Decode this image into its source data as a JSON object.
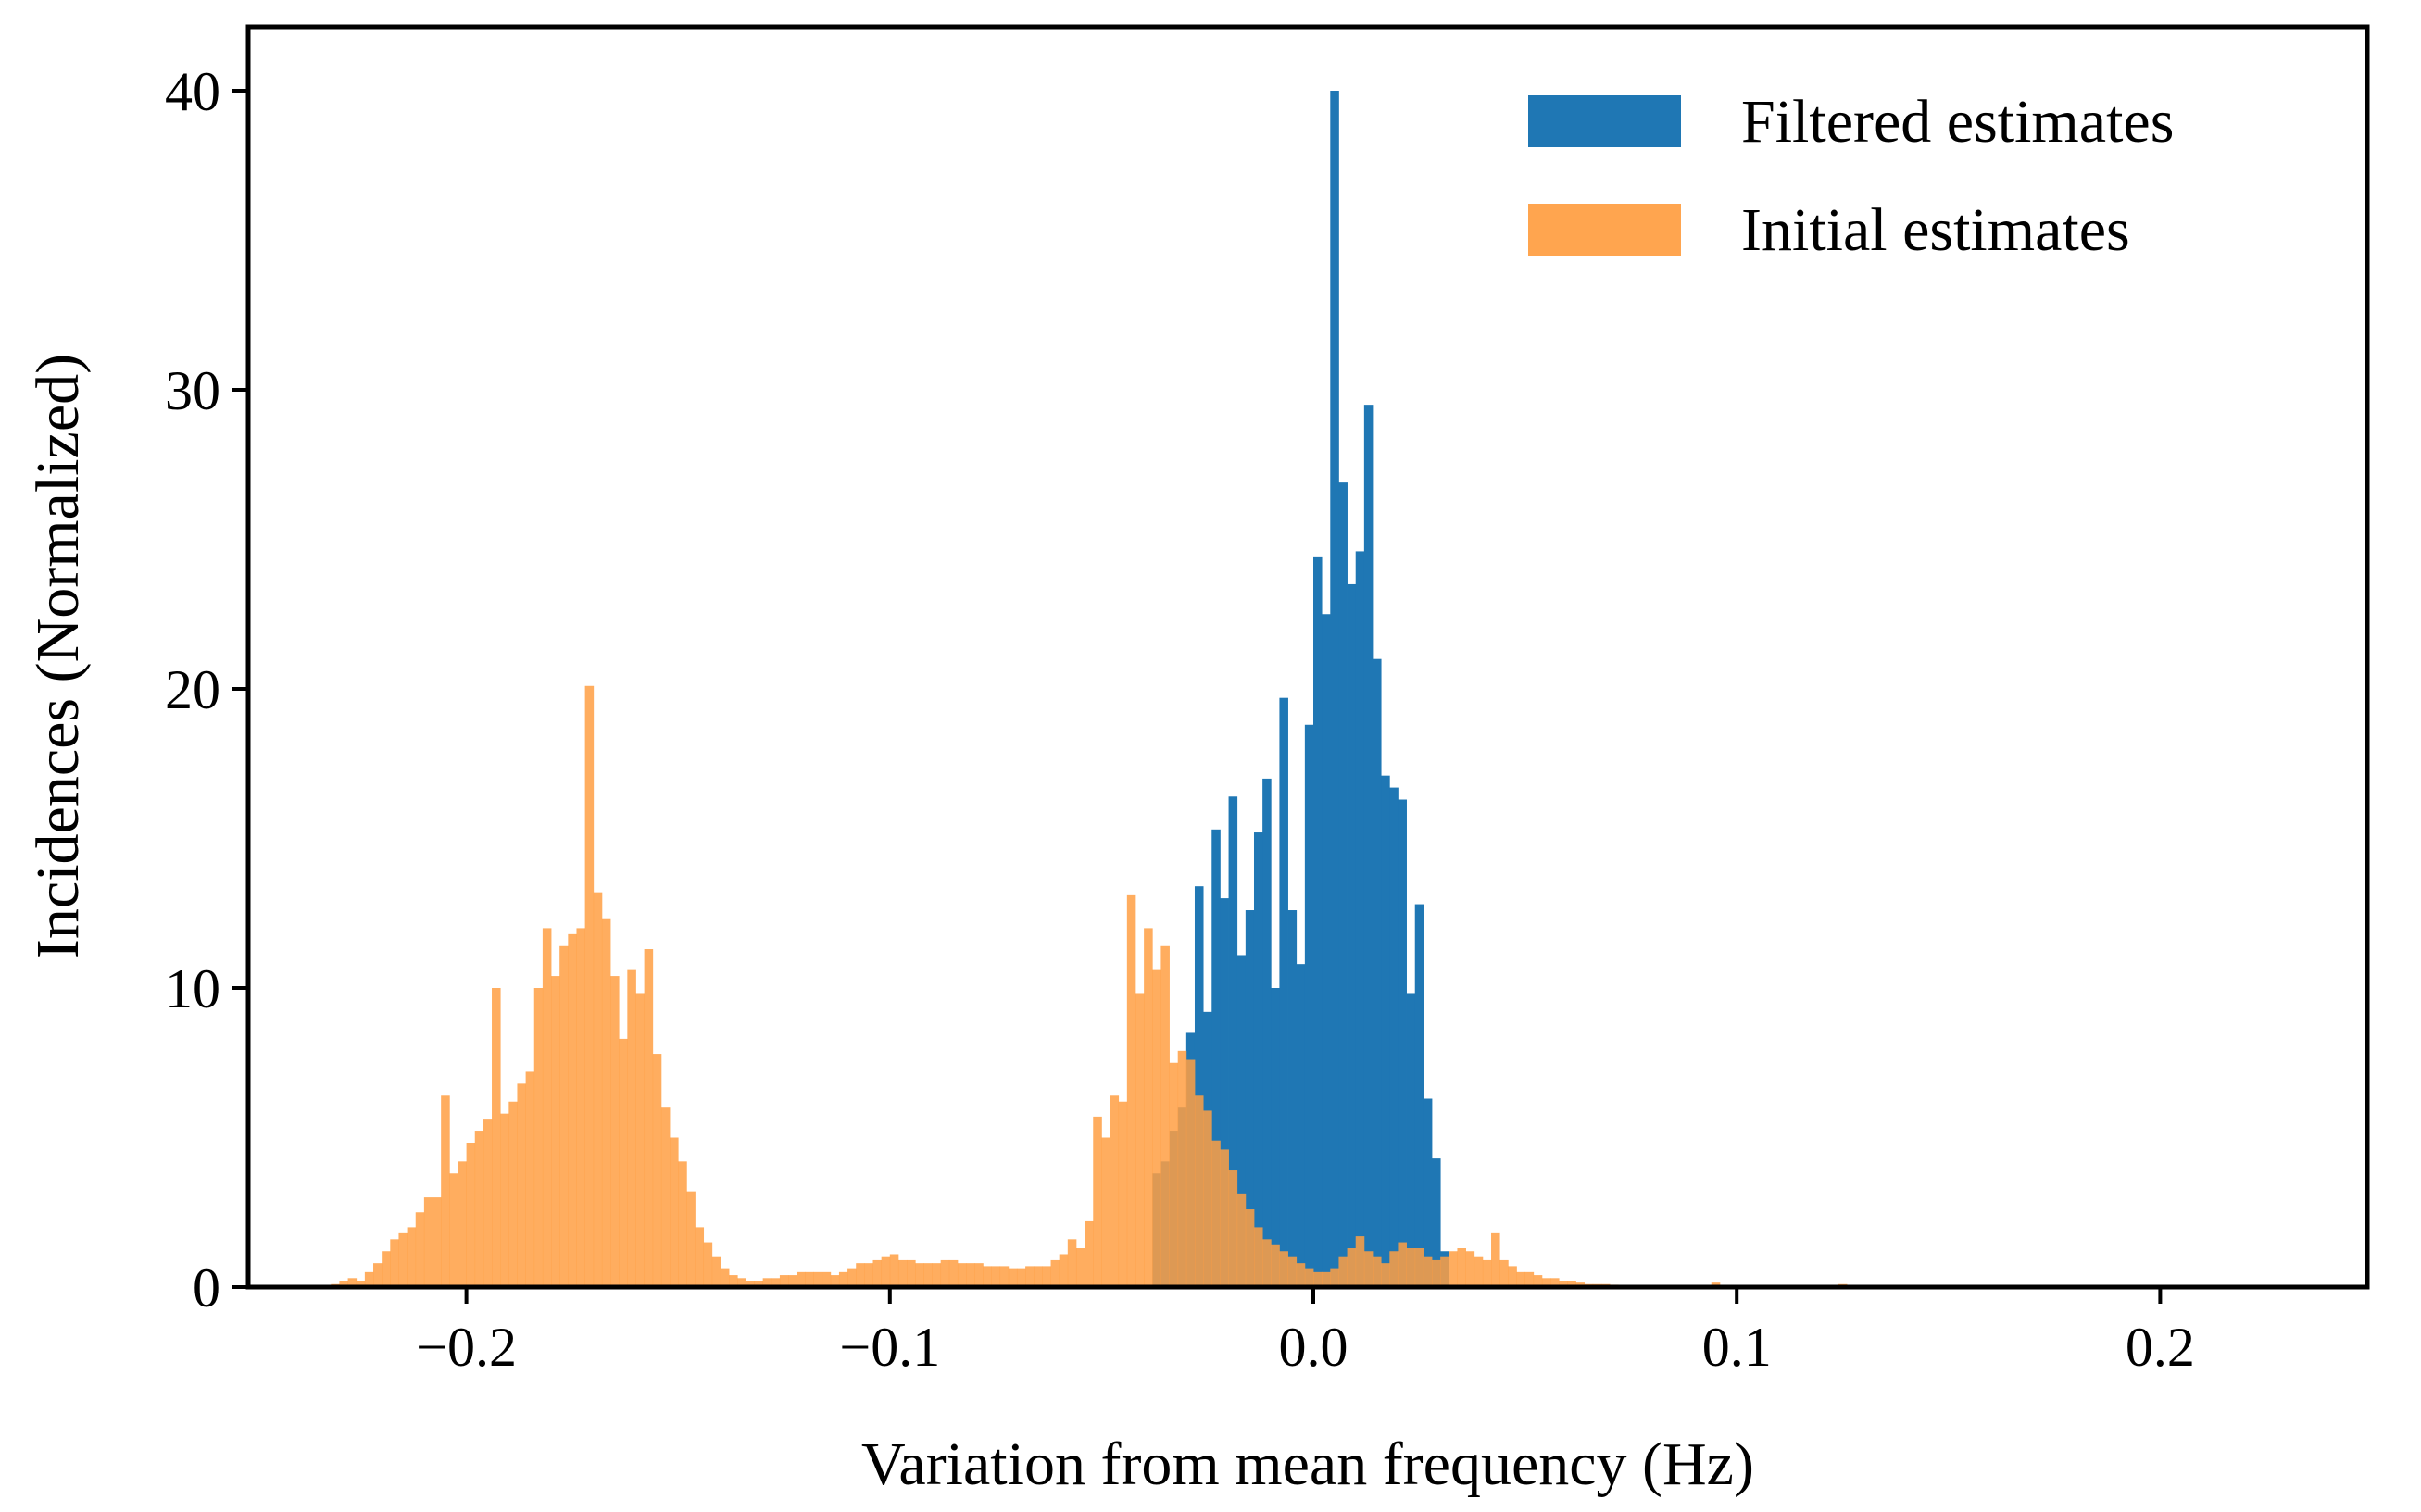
{
  "chart_data": {
    "type": "histogram",
    "title": "",
    "xlabel": "Variation from mean frequency (Hz)",
    "ylabel": "Incidences (Normalized)",
    "xlim": [
      -0.25,
      0.25
    ],
    "ylim": [
      0,
      42
    ],
    "grid": false,
    "legend_position": "top-right",
    "x_ticks": [
      -0.2,
      -0.1,
      0.0,
      0.1,
      0.2
    ],
    "x_tick_labels": [
      "−0.2",
      "−0.1",
      "0.0",
      "0.1",
      "0.2"
    ],
    "y_ticks": [
      0,
      10,
      20,
      30,
      40
    ],
    "y_tick_labels": [
      "0",
      "10",
      "20",
      "30",
      "40"
    ],
    "series": [
      {
        "name": "Filtered estimates",
        "color": "#1f77b4",
        "alpha": 1.0,
        "bin_start": -0.038,
        "bin_width": 0.002,
        "values": [
          3.8,
          4.2,
          5.2,
          6.0,
          8.5,
          13.4,
          9.2,
          15.3,
          13.0,
          16.4,
          11.1,
          12.6,
          15.2,
          17.0,
          10.0,
          19.7,
          12.6,
          10.8,
          18.8,
          24.4,
          22.5,
          40.0,
          26.9,
          23.5,
          24.6,
          29.5,
          21.0,
          17.1,
          16.7,
          16.3,
          9.8,
          12.8,
          6.3,
          4.3,
          1.2
        ]
      },
      {
        "name": "Initial estimates",
        "color": "#ff9f43",
        "alpha": 0.85,
        "bin_start": -0.232,
        "bin_width": 0.002,
        "values": [
          0.1,
          0.2,
          0.3,
          0.2,
          0.5,
          0.8,
          1.2,
          1.6,
          1.8,
          2.0,
          2.5,
          3.0,
          3.0,
          6.4,
          3.8,
          4.2,
          4.8,
          5.2,
          5.6,
          10.0,
          5.8,
          6.2,
          6.8,
          7.2,
          10.0,
          12.0,
          10.4,
          11.4,
          11.8,
          12.0,
          20.1,
          13.2,
          12.3,
          10.4,
          8.3,
          10.6,
          9.8,
          11.3,
          7.8,
          6.0,
          5.0,
          4.2,
          3.2,
          2.0,
          1.5,
          1.0,
          0.6,
          0.4,
          0.3,
          0.2,
          0.2,
          0.3,
          0.3,
          0.4,
          0.4,
          0.5,
          0.5,
          0.5,
          0.5,
          0.4,
          0.5,
          0.6,
          0.8,
          0.8,
          0.9,
          1.0,
          1.1,
          0.9,
          0.9,
          0.8,
          0.8,
          0.8,
          0.9,
          0.9,
          0.8,
          0.8,
          0.8,
          0.7,
          0.7,
          0.7,
          0.6,
          0.6,
          0.7,
          0.7,
          0.7,
          0.9,
          1.1,
          1.6,
          1.3,
          2.2,
          5.7,
          5.0,
          6.4,
          6.2,
          13.1,
          9.8,
          12.0,
          10.6,
          11.4,
          7.5,
          7.9,
          7.6,
          6.4,
          5.9,
          4.9,
          4.6,
          3.9,
          3.1,
          2.6,
          2.0,
          1.6,
          1.4,
          1.2,
          1.0,
          0.8,
          0.6,
          0.5,
          0.5,
          0.6,
          1.0,
          1.3,
          1.7,
          1.2,
          1.0,
          0.8,
          1.2,
          1.5,
          1.3,
          1.3,
          1.0,
          0.9,
          1.0,
          1.2,
          1.3,
          1.2,
          1.0,
          0.9,
          1.8,
          0.9,
          0.7,
          0.5,
          0.5,
          0.4,
          0.3,
          0.3,
          0.2,
          0.2,
          0.15,
          0.1,
          0.1,
          0.1,
          0.08,
          0.06,
          0.05,
          0.05,
          0.05,
          0.05,
          0.04,
          0.04,
          0.04,
          0.04,
          0.04,
          0.04,
          0.15,
          0.03,
          0.03,
          0.03,
          0.03,
          0.03,
          0.03,
          0.03,
          0.03,
          0.03,
          0.03,
          0.03,
          0.03,
          0.03,
          0.03,
          0.1,
          0.02,
          0.02,
          0.02,
          0.02,
          0.02,
          0.02,
          0.02,
          0.02,
          0.02,
          0.02,
          0.02,
          0.02,
          0.02,
          0.02,
          0.02,
          0.02,
          0.02,
          0.02,
          0.02,
          0.02,
          0.02,
          0.02,
          0.02,
          0.02,
          0.02,
          0.02,
          0.02,
          0.02,
          0.02,
          0.02,
          0.02,
          0.02,
          0.02,
          0.02,
          0.02,
          0.02,
          0.02,
          0.02,
          0.02
        ]
      }
    ]
  },
  "legend": {
    "items": [
      {
        "label": "Filtered estimates",
        "color": "#1f77b4"
      },
      {
        "label": "Initial estimates",
        "color": "#ffa54f"
      }
    ]
  }
}
